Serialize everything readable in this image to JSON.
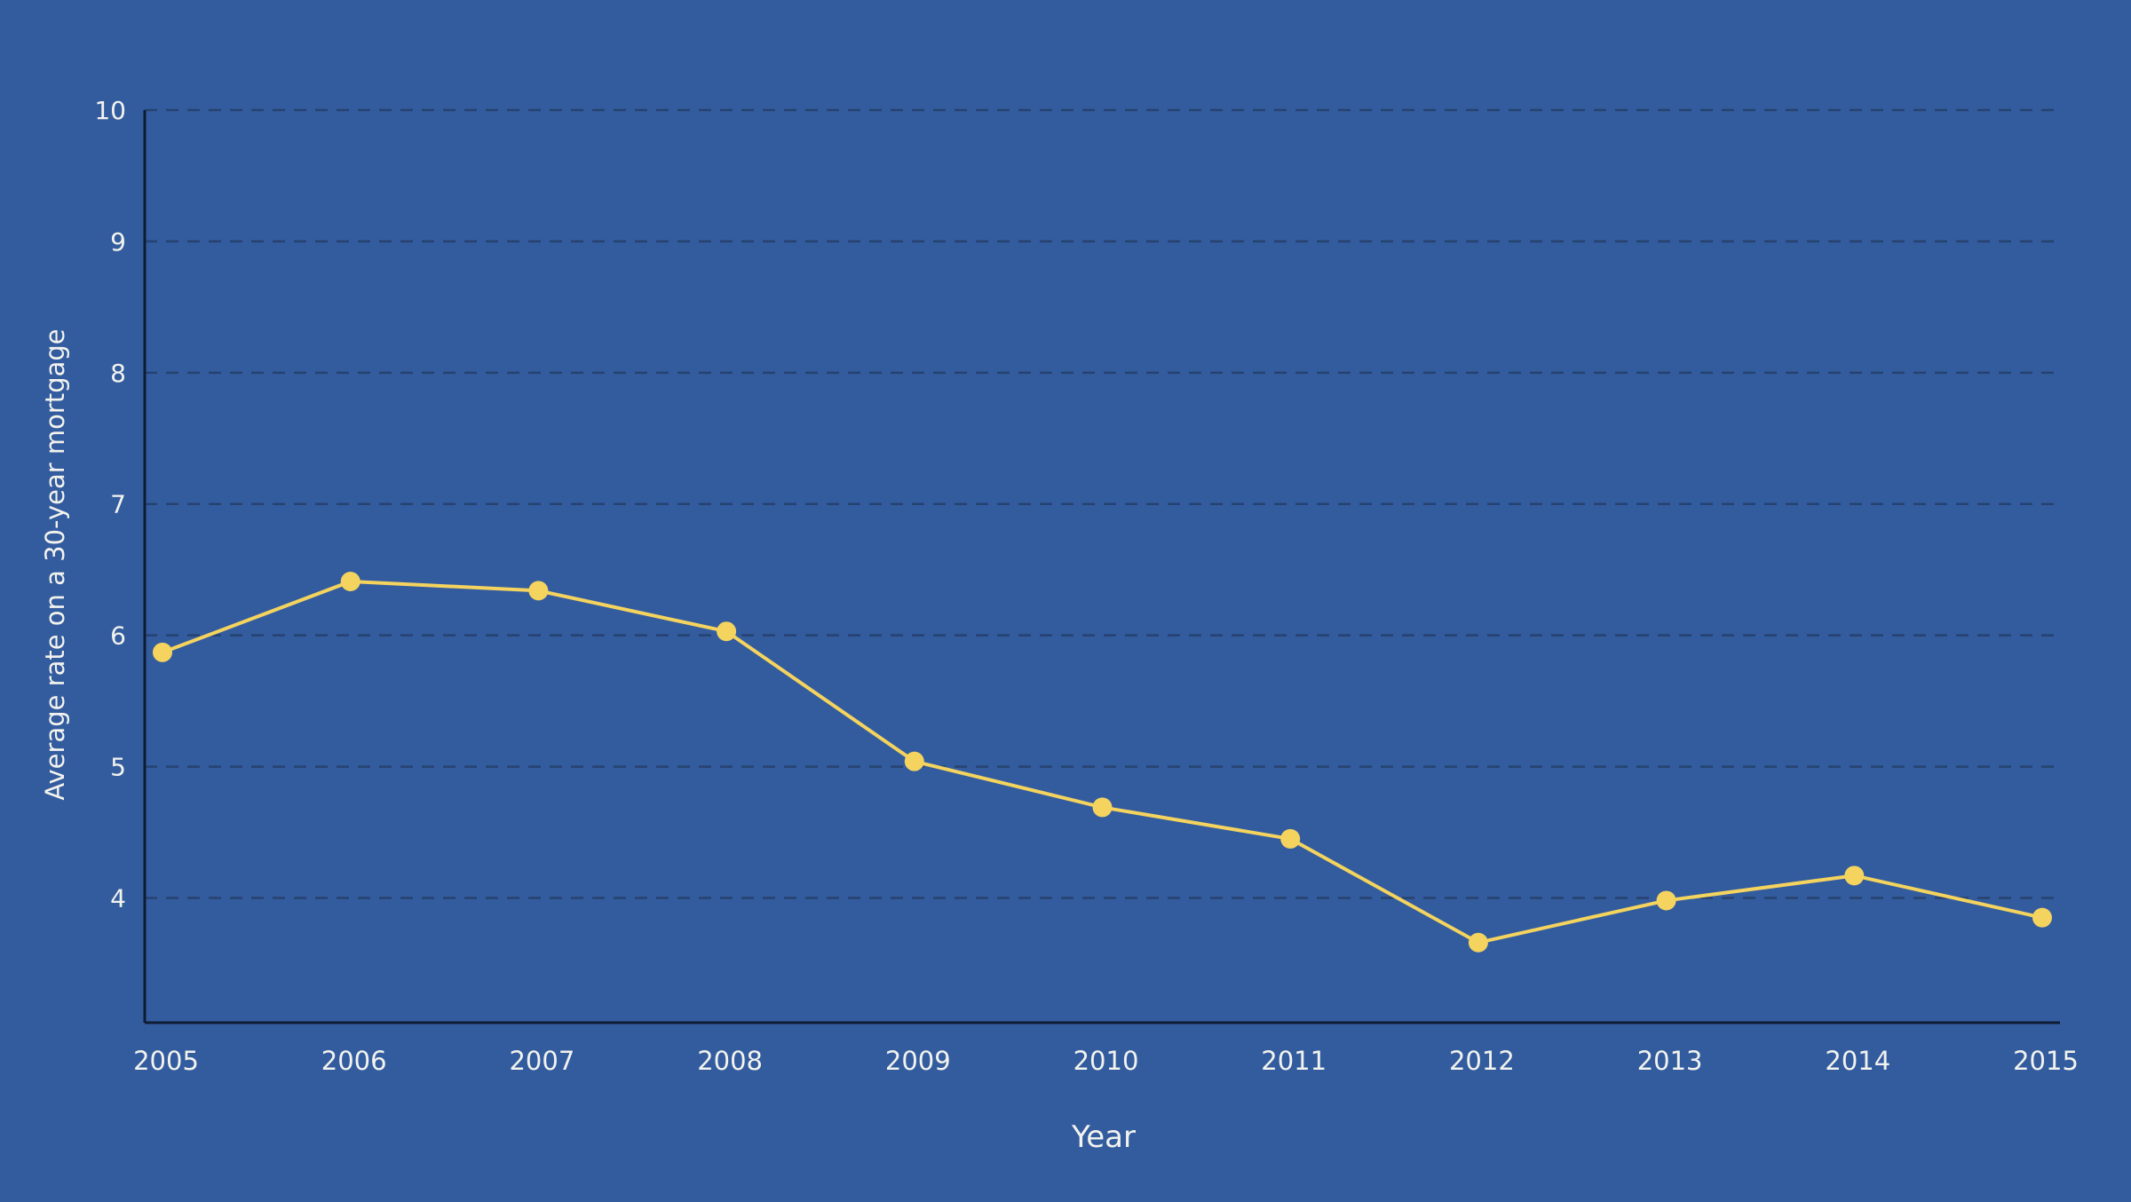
{
  "colors": {
    "background": "#335c9f",
    "line": "#f4d35e",
    "axis": "#0f1b33",
    "grid": "#26426f",
    "text": "#f3f3ee"
  },
  "chart_data": {
    "type": "line",
    "xlabel": "Year",
    "ylabel": "Average rate on a 30-year mortgage",
    "x": [
      2005,
      2006,
      2007,
      2008,
      2009,
      2010,
      2011,
      2012,
      2013,
      2014,
      2015
    ],
    "series": [
      {
        "values": [
          5.87,
          6.41,
          6.34,
          6.03,
          5.04,
          4.69,
          4.45,
          3.66,
          3.98,
          4.17,
          3.85
        ]
      }
    ],
    "xticks": [
      "2005",
      "2006",
      "2007",
      "2008",
      "2009",
      "2010",
      "2011",
      "2012",
      "2013",
      "2014",
      "2015"
    ],
    "yticks": [
      "4",
      "5",
      "6",
      "7",
      "8",
      "9",
      "10"
    ],
    "ylim": [
      3.05,
      10
    ],
    "xlim": [
      2005,
      2015
    ],
    "grid": "horizontal dashed"
  }
}
